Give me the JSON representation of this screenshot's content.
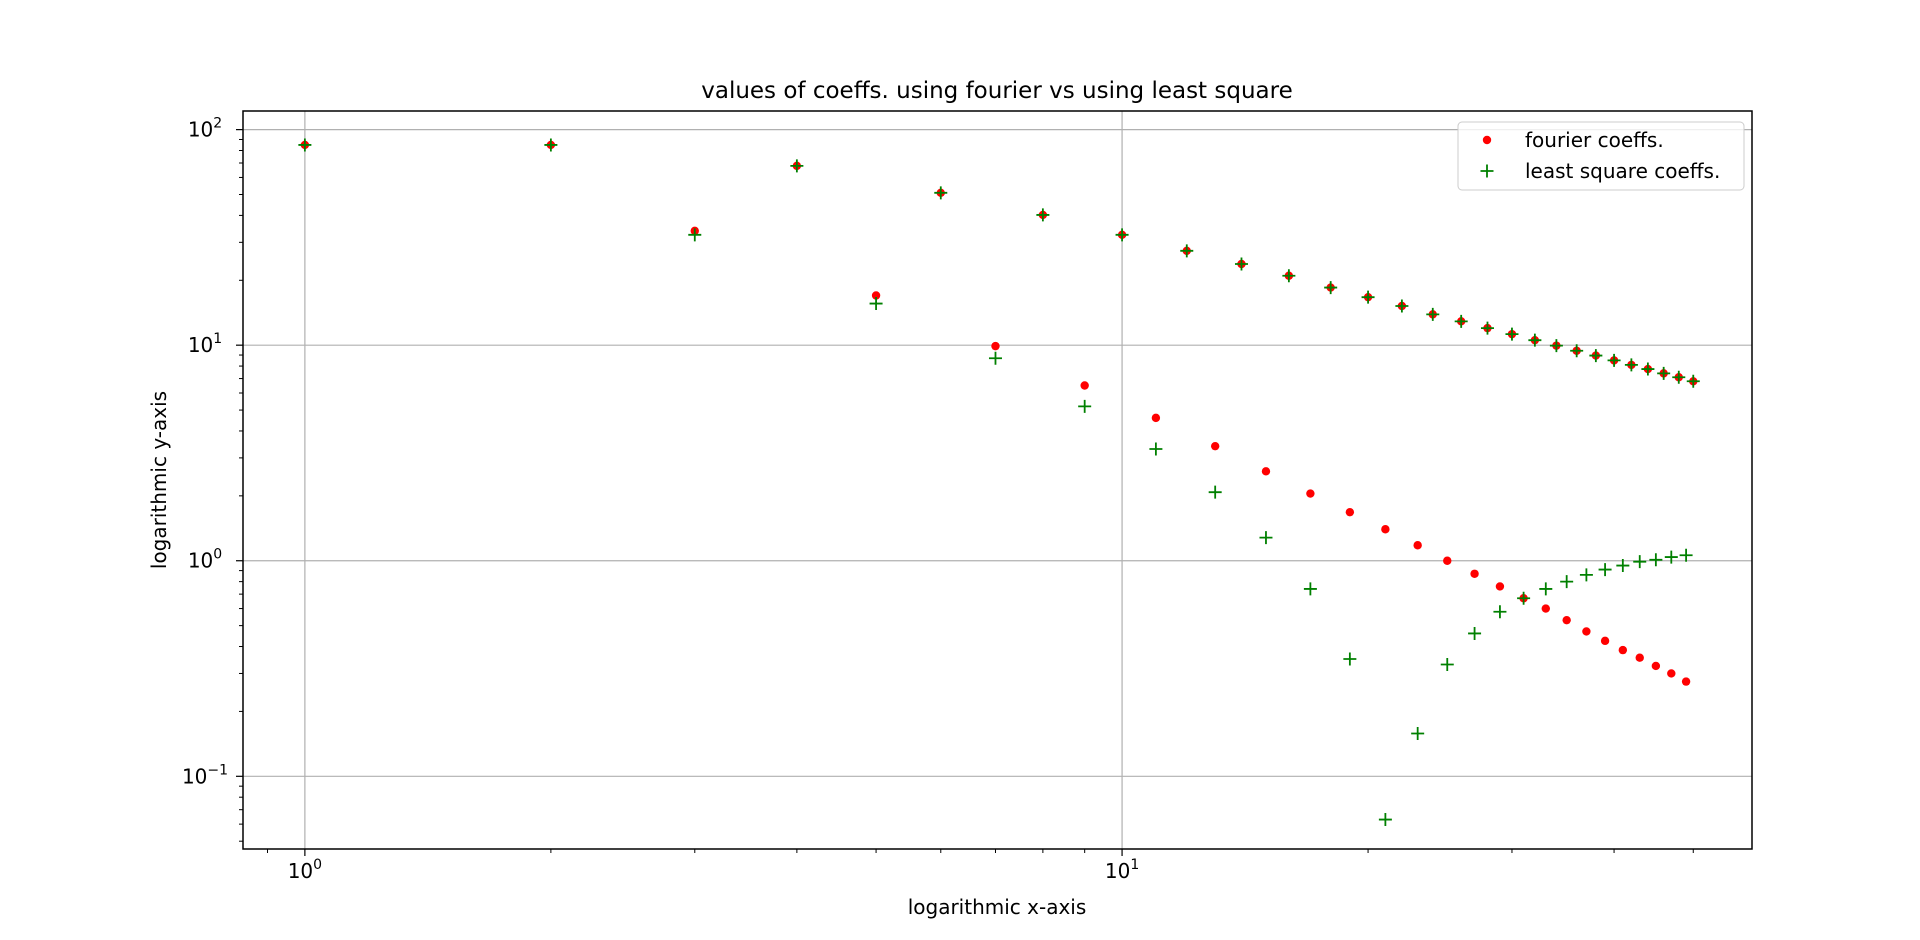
{
  "chart_data": {
    "type": "scatter",
    "title": "values of coeffs. using fourier vs using least square",
    "xlabel": "logarithmic x-axis",
    "ylabel": "logarithmic y-axis",
    "xscale": "log",
    "yscale": "log",
    "xlim": [
      0.84,
      59
    ],
    "ylim": [
      0.046,
      122
    ],
    "grid": true,
    "legend_placement": "top-right",
    "x_ticks": [
      {
        "value": 1,
        "base": "10",
        "exp": "0"
      },
      {
        "value": 10,
        "base": "10",
        "exp": "1"
      }
    ],
    "y_ticks": [
      {
        "value": 0.1,
        "base": "10",
        "exp": "−1"
      },
      {
        "value": 1,
        "base": "10",
        "exp": "0"
      },
      {
        "value": 10,
        "base": "10",
        "exp": "1"
      },
      {
        "value": 100,
        "base": "10",
        "exp": "2"
      }
    ],
    "series": [
      {
        "name": "fourier coeffs.",
        "marker": "dot",
        "color": "#ff0000",
        "x": [
          1,
          2,
          3,
          4,
          5,
          6,
          7,
          8,
          9,
          10,
          11,
          12,
          13,
          14,
          15,
          16,
          17,
          18,
          19,
          20,
          21,
          22,
          23,
          24,
          25,
          26,
          27,
          28,
          29,
          30,
          31,
          32,
          33,
          34,
          35,
          36,
          37,
          38,
          39,
          40,
          41,
          42,
          43,
          44,
          45,
          46,
          47,
          48,
          49,
          50
        ],
        "y": [
          84.9,
          84.9,
          33.9,
          67.9,
          17.0,
          50.9,
          9.9,
          40.2,
          6.5,
          32.5,
          4.6,
          27.4,
          3.4,
          23.8,
          2.6,
          21.0,
          2.05,
          18.5,
          1.68,
          16.7,
          1.4,
          15.2,
          1.18,
          13.9,
          1.0,
          12.9,
          0.87,
          12.0,
          0.76,
          11.25,
          0.67,
          10.55,
          0.6,
          9.95,
          0.53,
          9.42,
          0.47,
          8.95,
          0.425,
          8.5,
          0.385,
          8.1,
          0.355,
          7.75,
          0.325,
          7.4,
          0.3,
          7.1,
          0.275,
          6.8
        ]
      },
      {
        "name": "least square coeffs.",
        "marker": "plus",
        "color": "#008000",
        "x": [
          1,
          2,
          3,
          4,
          5,
          6,
          7,
          8,
          9,
          10,
          11,
          12,
          13,
          14,
          15,
          16,
          17,
          18,
          19,
          20,
          21,
          22,
          23,
          24,
          25,
          26,
          27,
          28,
          29,
          30,
          31,
          32,
          33,
          34,
          35,
          36,
          37,
          38,
          39,
          40,
          41,
          42,
          43,
          44,
          45,
          46,
          47,
          48,
          49,
          50
        ],
        "y": [
          84.9,
          84.9,
          32.5,
          67.9,
          15.6,
          50.9,
          8.7,
          40.2,
          5.2,
          32.5,
          3.3,
          27.4,
          2.08,
          23.8,
          1.28,
          21.0,
          0.74,
          18.5,
          0.35,
          16.7,
          0.063,
          15.2,
          0.158,
          13.9,
          0.33,
          12.9,
          0.46,
          12.0,
          0.58,
          11.25,
          0.67,
          10.55,
          0.74,
          9.95,
          0.8,
          9.42,
          0.86,
          8.95,
          0.91,
          8.5,
          0.95,
          8.1,
          0.99,
          7.75,
          1.01,
          7.4,
          1.04,
          7.1,
          1.06,
          6.8
        ]
      }
    ]
  }
}
